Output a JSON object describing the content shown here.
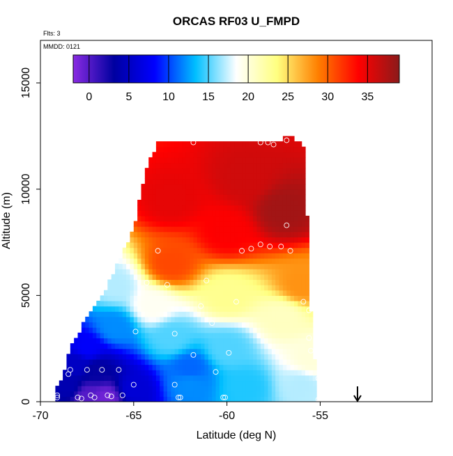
{
  "chart_data": {
    "type": "heatmap",
    "title": "ORCAS RF03 U_FMPD",
    "subtitle_flights": "Flts: 3",
    "subtitle_date": "MMDD: 0121",
    "xlabel": "Latitude (deg N)",
    "ylabel": "Altitude (m)",
    "xlim": [
      -70,
      -49
    ],
    "ylim": [
      0,
      17000
    ],
    "x_ticks": [
      -70,
      -65,
      -60,
      -55
    ],
    "y_ticks": [
      0,
      5000,
      10000,
      15000
    ],
    "colorbar": {
      "vmin": -2,
      "vmax": 39,
      "ticks": [
        0,
        5,
        10,
        15,
        20,
        25,
        30,
        35
      ],
      "colors": [
        "#8a2be2",
        "#0000a0",
        "#0000ff",
        "#00bfff",
        "#ffffff",
        "#ffff80",
        "#ff8000",
        "#ff0000",
        "#8b1a1a"
      ]
    },
    "coverage_outline_lat_alt": [
      [
        -69.2,
        0
      ],
      [
        -69.2,
        500
      ],
      [
        -68.8,
        1200
      ],
      [
        -68.5,
        2300
      ],
      [
        -67.8,
        3500
      ],
      [
        -66.8,
        4800
      ],
      [
        -66.0,
        6200
      ],
      [
        -65.0,
        8200
      ],
      [
        -64.3,
        11000
      ],
      [
        -63.7,
        12300
      ],
      [
        -57.0,
        12300
      ],
      [
        -57.0,
        12500
      ],
      [
        -56.6,
        12500
      ],
      [
        -56.2,
        12300
      ],
      [
        -55.8,
        12000
      ],
      [
        -55.6,
        5500
      ],
      [
        -55.2,
        1000
      ],
      [
        -55.2,
        0
      ]
    ],
    "wind_field_anchors": [
      {
        "lat": -63,
        "alt": 9500,
        "u": 35
      },
      {
        "lat": -59,
        "alt": 10500,
        "u": 36
      },
      {
        "lat": -57,
        "alt": 9000,
        "u": 38
      },
      {
        "lat": -60,
        "alt": 8000,
        "u": 34
      },
      {
        "lat": -63,
        "alt": 6500,
        "u": 31
      },
      {
        "lat": -56,
        "alt": 5500,
        "u": 28
      },
      {
        "lat": -60,
        "alt": 5000,
        "u": 23
      },
      {
        "lat": -57,
        "alt": 4000,
        "u": 21
      },
      {
        "lat": -64,
        "alt": 4500,
        "u": 19
      },
      {
        "lat": -66,
        "alt": 5500,
        "u": 17
      },
      {
        "lat": -66,
        "alt": 3500,
        "u": 12
      },
      {
        "lat": -63,
        "alt": 3000,
        "u": 15
      },
      {
        "lat": -60,
        "alt": 2500,
        "u": 15
      },
      {
        "lat": -67.5,
        "alt": 2500,
        "u": 8
      },
      {
        "lat": -68,
        "alt": 1800,
        "u": 5
      },
      {
        "lat": -67,
        "alt": 1500,
        "u": 3
      },
      {
        "lat": -68.5,
        "alt": 700,
        "u": 4
      },
      {
        "lat": -67.5,
        "alt": 300,
        "u": 0
      },
      {
        "lat": -66.5,
        "alt": 200,
        "u": -1
      },
      {
        "lat": -65,
        "alt": 600,
        "u": 6
      },
      {
        "lat": -62,
        "alt": 800,
        "u": 12
      },
      {
        "lat": -59,
        "alt": 700,
        "u": 14
      },
      {
        "lat": -56,
        "alt": 800,
        "u": 17
      },
      {
        "lat": -55.5,
        "alt": 2000,
        "u": 20
      },
      {
        "lat": -62,
        "alt": 1600,
        "u": 11
      }
    ],
    "observations": [
      {
        "lat": -69.1,
        "alt": 200
      },
      {
        "lat": -69.1,
        "alt": 300
      },
      {
        "lat": -68.5,
        "alt": 1300
      },
      {
        "lat": -68.4,
        "alt": 1500
      },
      {
        "lat": -67.5,
        "alt": 1500
      },
      {
        "lat": -66.7,
        "alt": 1500
      },
      {
        "lat": -65.8,
        "alt": 1500
      },
      {
        "lat": -65.0,
        "alt": 800
      },
      {
        "lat": -68.0,
        "alt": 200
      },
      {
        "lat": -67.8,
        "alt": 150
      },
      {
        "lat": -67.3,
        "alt": 300
      },
      {
        "lat": -67.1,
        "alt": 200
      },
      {
        "lat": -66.4,
        "alt": 300
      },
      {
        "lat": -66.2,
        "alt": 250
      },
      {
        "lat": -65.6,
        "alt": 300
      },
      {
        "lat": -62.8,
        "alt": 800
      },
      {
        "lat": -62.5,
        "alt": 200
      },
      {
        "lat": -62.6,
        "alt": 200
      },
      {
        "lat": -60.2,
        "alt": 200
      },
      {
        "lat": -60.1,
        "alt": 200
      },
      {
        "lat": -60.6,
        "alt": 1400
      },
      {
        "lat": -59.9,
        "alt": 2300
      },
      {
        "lat": -61.8,
        "alt": 2200
      },
      {
        "lat": -62.8,
        "alt": 3200
      },
      {
        "lat": -64.9,
        "alt": 3300
      },
      {
        "lat": -60.8,
        "alt": 3700
      },
      {
        "lat": -61.4,
        "alt": 4500
      },
      {
        "lat": -59.5,
        "alt": 4700
      },
      {
        "lat": -55.9,
        "alt": 4700
      },
      {
        "lat": -55.6,
        "alt": 4300
      },
      {
        "lat": -55.6,
        "alt": 3000
      },
      {
        "lat": -55.5,
        "alt": 2400
      },
      {
        "lat": -64.3,
        "alt": 5600
      },
      {
        "lat": -63.2,
        "alt": 5500
      },
      {
        "lat": -61.1,
        "alt": 5700
      },
      {
        "lat": -63.7,
        "alt": 7100
      },
      {
        "lat": -59.2,
        "alt": 7100
      },
      {
        "lat": -58.7,
        "alt": 7200
      },
      {
        "lat": -58.2,
        "alt": 7400
      },
      {
        "lat": -57.7,
        "alt": 7300
      },
      {
        "lat": -57.1,
        "alt": 7300
      },
      {
        "lat": -56.6,
        "alt": 7100
      },
      {
        "lat": -56.8,
        "alt": 8300
      },
      {
        "lat": -64.6,
        "alt": 12100
      },
      {
        "lat": -61.8,
        "alt": 12200
      },
      {
        "lat": -58.2,
        "alt": 12200
      },
      {
        "lat": -57.8,
        "alt": 12200
      },
      {
        "lat": -57.5,
        "alt": 12100
      },
      {
        "lat": -56.8,
        "alt": 12300
      },
      {
        "lat": -55.1,
        "alt": 100
      },
      {
        "lat": -55.1,
        "alt": 1100
      }
    ],
    "marker_arrow_lat": -53
  }
}
